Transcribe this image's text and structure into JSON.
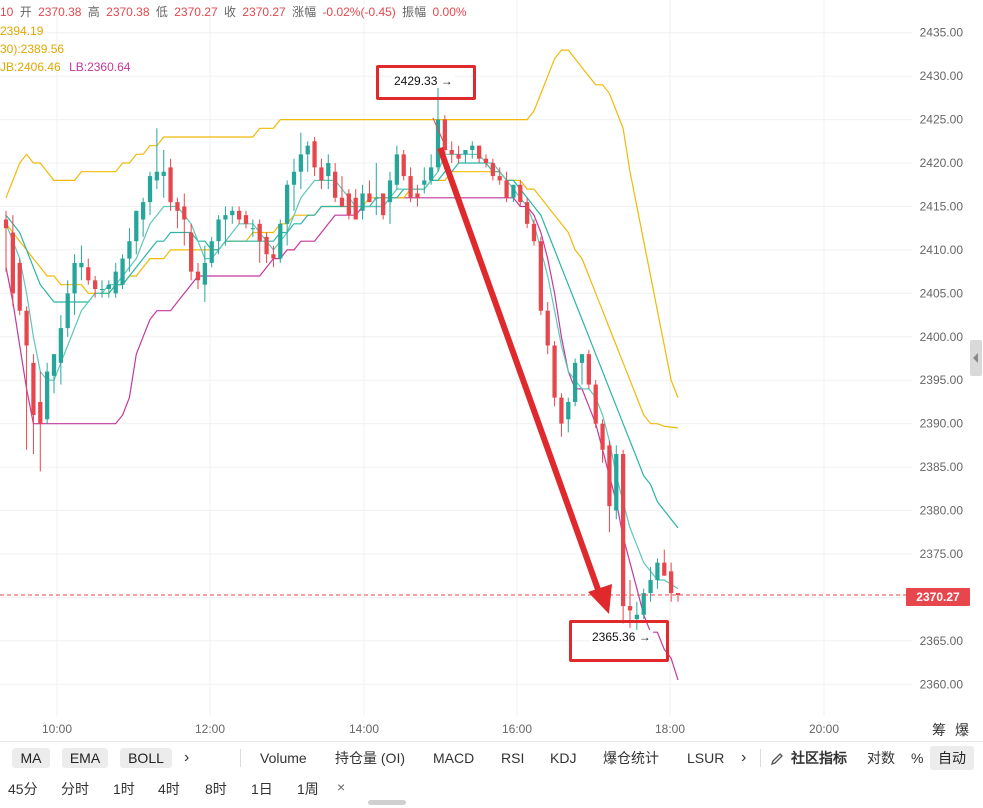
{
  "header": {
    "open_fragment": "10",
    "open_label": "开",
    "open_value": "2370.38",
    "high_label": "高",
    "high_value": "2370.38",
    "low_label": "低",
    "low_value": "2370.27",
    "close_label": "收",
    "close_value": "2370.27",
    "change_label": "涨幅",
    "change_value": "-0.02%(-0.45)",
    "amplitude_label": "振幅",
    "amplitude_value": "0.00%",
    "ma_line_1": "2394.19",
    "ma_line_2": "30):2389.56",
    "boll_ub": "JB:2406.46",
    "boll_lb": "LB:2360.64"
  },
  "annotations": {
    "high_label": "2429.33 →",
    "low_label": "2365.36 →"
  },
  "last_price": "2370.27",
  "colors": {
    "up": "#26a69a",
    "down": "#e8464d",
    "boll_upper": "#f0b90b",
    "boll_lower": "#c2399d",
    "ma_teal": "#2ab5a5",
    "annotation": "#e0292d",
    "grid": "#f0f0f0"
  },
  "price_axis_ticks": [
    "2435.00",
    "2430.00",
    "2425.00",
    "2420.00",
    "2415.00",
    "2410.00",
    "2405.00",
    "2400.00",
    "2395.00",
    "2390.00",
    "2385.00",
    "2380.00",
    "2375.00",
    "2370.00",
    "2365.00",
    "2360.00"
  ],
  "time_axis_ticks": [
    "10:00",
    "12:00",
    "14:00",
    "16:00",
    "18:00",
    "20:00"
  ],
  "corner_labels": [
    "筹",
    "爆"
  ],
  "indicator_bar": {
    "chips": [
      "MA",
      "EMA",
      "BOLL"
    ],
    "arrow_1": "›",
    "tabs": [
      "Volume",
      "持仓量 (OI)",
      "MACD",
      "RSI",
      "KDJ",
      "爆仓统计",
      "LSUR"
    ],
    "arrow_2": "›",
    "community_icon": "pencil-icon",
    "community": "社区指标",
    "ratio": "对数",
    "percent": "%",
    "auto": "自动"
  },
  "timeframes": [
    "45分",
    "分时",
    "1时",
    "4时",
    "8时",
    "1日",
    "1周"
  ],
  "close_symbol": "×",
  "chart_data": {
    "type": "candlestick",
    "title": "",
    "xlabel": "",
    "ylabel": "",
    "ylim": [
      2357.5,
      2437.5
    ],
    "x_ticks": [
      "10:00",
      "12:00",
      "14:00",
      "16:00",
      "18:00",
      "20:00"
    ],
    "candles": [
      {
        "o": 2413.5,
        "h": 2414.5,
        "l": 2407.5,
        "c": 2412.5
      },
      {
        "o": 2412.0,
        "h": 2414.0,
        "l": 2403.5,
        "c": 2405.0
      },
      {
        "o": 2408.5,
        "h": 2409.0,
        "l": 2402.5,
        "c": 2403.0
      },
      {
        "o": 2403.0,
        "h": 2403.5,
        "l": 2387.0,
        "c": 2399.0
      },
      {
        "o": 2397.0,
        "h": 2398.0,
        "l": 2386.5,
        "c": 2391.0
      },
      {
        "o": 2392.5,
        "h": 2396.0,
        "l": 2384.5,
        "c": 2390.0
      },
      {
        "o": 2390.5,
        "h": 2397.0,
        "l": 2390.0,
        "c": 2396.0
      },
      {
        "o": 2395.5,
        "h": 2398.0,
        "l": 2393.5,
        "c": 2398.0
      },
      {
        "o": 2397.0,
        "h": 2402.5,
        "l": 2394.5,
        "c": 2401.0
      },
      {
        "o": 2401.0,
        "h": 2406.5,
        "l": 2400.0,
        "c": 2405.0
      },
      {
        "o": 2405.0,
        "h": 2409.5,
        "l": 2402.5,
        "c": 2408.5
      },
      {
        "o": 2408.0,
        "h": 2410.5,
        "l": 2406.5,
        "c": 2408.5
      },
      {
        "o": 2408.0,
        "h": 2409.0,
        "l": 2406.0,
        "c": 2406.5
      },
      {
        "o": 2406.5,
        "h": 2407.0,
        "l": 2404.5,
        "c": 2405.5
      },
      {
        "o": 2405.5,
        "h": 2406.5,
        "l": 2404.5,
        "c": 2405.5
      },
      {
        "o": 2405.5,
        "h": 2406.5,
        "l": 2404.5,
        "c": 2406.0
      },
      {
        "o": 2405.0,
        "h": 2408.5,
        "l": 2404.5,
        "c": 2407.5
      },
      {
        "o": 2406.0,
        "h": 2409.5,
        "l": 2405.5,
        "c": 2409.0
      },
      {
        "o": 2409.0,
        "h": 2412.5,
        "l": 2407.5,
        "c": 2411.0
      },
      {
        "o": 2411.0,
        "h": 2414.5,
        "l": 2409.5,
        "c": 2414.5
      },
      {
        "o": 2413.5,
        "h": 2416.0,
        "l": 2411.5,
        "c": 2415.5
      },
      {
        "o": 2415.5,
        "h": 2419.0,
        "l": 2414.0,
        "c": 2418.5
      },
      {
        "o": 2418.0,
        "h": 2424.0,
        "l": 2417.0,
        "c": 2419.0
      },
      {
        "o": 2418.5,
        "h": 2421.5,
        "l": 2416.0,
        "c": 2419.0
      },
      {
        "o": 2419.5,
        "h": 2420.5,
        "l": 2414.5,
        "c": 2415.5
      },
      {
        "o": 2415.5,
        "h": 2416.0,
        "l": 2412.5,
        "c": 2414.5
      },
      {
        "o": 2415.0,
        "h": 2416.5,
        "l": 2410.5,
        "c": 2413.5
      },
      {
        "o": 2412.0,
        "h": 2413.0,
        "l": 2406.5,
        "c": 2407.5
      },
      {
        "o": 2407.5,
        "h": 2408.5,
        "l": 2405.5,
        "c": 2406.5
      },
      {
        "o": 2406.0,
        "h": 2410.5,
        "l": 2404.0,
        "c": 2408.5
      },
      {
        "o": 2408.5,
        "h": 2411.5,
        "l": 2408.0,
        "c": 2411.0
      },
      {
        "o": 2411.0,
        "h": 2414.0,
        "l": 2409.5,
        "c": 2413.5
      },
      {
        "o": 2413.5,
        "h": 2415.0,
        "l": 2410.5,
        "c": 2414.0
      },
      {
        "o": 2414.0,
        "h": 2415.0,
        "l": 2413.0,
        "c": 2414.5
      },
      {
        "o": 2414.5,
        "h": 2415.0,
        "l": 2413.0,
        "c": 2413.5
      },
      {
        "o": 2414.0,
        "h": 2414.5,
        "l": 2412.5,
        "c": 2413.0
      },
      {
        "o": 2412.5,
        "h": 2413.5,
        "l": 2411.5,
        "c": 2412.5
      },
      {
        "o": 2413.0,
        "h": 2413.5,
        "l": 2408.5,
        "c": 2411.0
      },
      {
        "o": 2411.5,
        "h": 2412.0,
        "l": 2408.5,
        "c": 2409.5
      },
      {
        "o": 2409.5,
        "h": 2410.5,
        "l": 2408.0,
        "c": 2409.0
      },
      {
        "o": 2409.0,
        "h": 2413.5,
        "l": 2408.5,
        "c": 2413.0
      },
      {
        "o": 2413.0,
        "h": 2418.0,
        "l": 2410.5,
        "c": 2417.5
      },
      {
        "o": 2417.5,
        "h": 2420.5,
        "l": 2414.5,
        "c": 2419.0
      },
      {
        "o": 2419.0,
        "h": 2423.5,
        "l": 2417.0,
        "c": 2421.0
      },
      {
        "o": 2421.0,
        "h": 2422.5,
        "l": 2419.0,
        "c": 2422.0
      },
      {
        "o": 2422.5,
        "h": 2423.0,
        "l": 2418.5,
        "c": 2419.5
      },
      {
        "o": 2419.5,
        "h": 2420.5,
        "l": 2417.0,
        "c": 2418.0
      },
      {
        "o": 2418.5,
        "h": 2421.0,
        "l": 2417.0,
        "c": 2420.0
      },
      {
        "o": 2419.0,
        "h": 2420.0,
        "l": 2415.5,
        "c": 2416.0
      },
      {
        "o": 2416.0,
        "h": 2418.5,
        "l": 2415.5,
        "c": 2415.0
      },
      {
        "o": 2416.5,
        "h": 2417.0,
        "l": 2413.5,
        "c": 2414.0
      },
      {
        "o": 2416.0,
        "h": 2417.0,
        "l": 2413.5,
        "c": 2413.5
      },
      {
        "o": 2414.5,
        "h": 2417.5,
        "l": 2413.5,
        "c": 2416.5
      },
      {
        "o": 2416.5,
        "h": 2418.0,
        "l": 2415.5,
        "c": 2415.5
      },
      {
        "o": 2416.0,
        "h": 2420.0,
        "l": 2414.0,
        "c": 2416.0
      },
      {
        "o": 2416.5,
        "h": 2416.0,
        "l": 2413.5,
        "c": 2414.0
      },
      {
        "o": 2415.5,
        "h": 2419.0,
        "l": 2413.0,
        "c": 2418.0
      },
      {
        "o": 2417.5,
        "h": 2422.0,
        "l": 2417.0,
        "c": 2421.0
      },
      {
        "o": 2421.0,
        "h": 2421.5,
        "l": 2418.0,
        "c": 2418.5
      },
      {
        "o": 2418.5,
        "h": 2419.5,
        "l": 2415.5,
        "c": 2416.0
      },
      {
        "o": 2416.5,
        "h": 2417.5,
        "l": 2415.0,
        "c": 2416.0
      },
      {
        "o": 2417.5,
        "h": 2419.5,
        "l": 2416.5,
        "c": 2418.0
      },
      {
        "o": 2418.0,
        "h": 2421.0,
        "l": 2417.5,
        "c": 2419.5
      },
      {
        "o": 2419.5,
        "h": 2429.3,
        "l": 2419.0,
        "c": 2425.0
      },
      {
        "o": 2425.0,
        "h": 2425.5,
        "l": 2421.0,
        "c": 2421.5
      },
      {
        "o": 2421.5,
        "h": 2422.5,
        "l": 2420.0,
        "c": 2421.0
      },
      {
        "o": 2421.0,
        "h": 2422.0,
        "l": 2420.0,
        "c": 2420.5
      },
      {
        "o": 2421.0,
        "h": 2421.5,
        "l": 2420.0,
        "c": 2421.5
      },
      {
        "o": 2421.5,
        "h": 2422.5,
        "l": 2420.5,
        "c": 2422.0
      },
      {
        "o": 2422.0,
        "h": 2422.0,
        "l": 2420.0,
        "c": 2420.5
      },
      {
        "o": 2420.5,
        "h": 2421.0,
        "l": 2419.5,
        "c": 2420.0
      },
      {
        "o": 2420.0,
        "h": 2420.5,
        "l": 2418.0,
        "c": 2418.5
      },
      {
        "o": 2418.5,
        "h": 2419.5,
        "l": 2417.5,
        "c": 2418.0
      },
      {
        "o": 2418.0,
        "h": 2419.0,
        "l": 2415.5,
        "c": 2416.0
      },
      {
        "o": 2416.0,
        "h": 2417.5,
        "l": 2415.5,
        "c": 2417.5
      },
      {
        "o": 2417.5,
        "h": 2418.0,
        "l": 2415.0,
        "c": 2415.5
      },
      {
        "o": 2415.5,
        "h": 2416.0,
        "l": 2412.5,
        "c": 2413.0
      },
      {
        "o": 2413.0,
        "h": 2413.5,
        "l": 2410.5,
        "c": 2411.0
      },
      {
        "o": 2411.0,
        "h": 2411.5,
        "l": 2402.5,
        "c": 2403.0
      },
      {
        "o": 2403.0,
        "h": 2404.0,
        "l": 2398.0,
        "c": 2399.0
      },
      {
        "o": 2399.0,
        "h": 2399.5,
        "l": 2392.0,
        "c": 2393.0
      },
      {
        "o": 2393.0,
        "h": 2393.5,
        "l": 2388.5,
        "c": 2390.0
      },
      {
        "o": 2390.5,
        "h": 2393.0,
        "l": 2389.0,
        "c": 2392.5
      },
      {
        "o": 2392.5,
        "h": 2397.5,
        "l": 2392.0,
        "c": 2397.0
      },
      {
        "o": 2397.0,
        "h": 2398.0,
        "l": 2394.5,
        "c": 2398.0
      },
      {
        "o": 2398.0,
        "h": 2398.5,
        "l": 2394.0,
        "c": 2394.5
      },
      {
        "o": 2394.5,
        "h": 2395.0,
        "l": 2389.5,
        "c": 2390.0
      },
      {
        "o": 2390.0,
        "h": 2390.5,
        "l": 2385.5,
        "c": 2387.0
      },
      {
        "o": 2387.5,
        "h": 2388.0,
        "l": 2377.5,
        "c": 2380.5
      },
      {
        "o": 2380.0,
        "h": 2387.5,
        "l": 2379.0,
        "c": 2386.5
      },
      {
        "o": 2386.5,
        "h": 2387.0,
        "l": 2367.0,
        "c": 2369.0
      },
      {
        "o": 2369.0,
        "h": 2372.0,
        "l": 2366.5,
        "c": 2368.5
      },
      {
        "o": 2367.5,
        "h": 2369.5,
        "l": 2365.4,
        "c": 2368.0
      },
      {
        "o": 2368.0,
        "h": 2371.0,
        "l": 2367.5,
        "c": 2370.5
      },
      {
        "o": 2370.5,
        "h": 2373.5,
        "l": 2369.5,
        "c": 2372.0
      },
      {
        "o": 2372.0,
        "h": 2374.5,
        "l": 2371.0,
        "c": 2374.0
      },
      {
        "o": 2374.0,
        "h": 2375.5,
        "l": 2372.5,
        "c": 2372.5
      },
      {
        "o": 2373.0,
        "h": 2374.0,
        "l": 2369.5,
        "c": 2370.5
      },
      {
        "o": 2370.5,
        "h": 2370.5,
        "l": 2369.5,
        "c": 2370.27
      }
    ],
    "boll_upper": [
      2416,
      2418,
      2420,
      2421,
      2420,
      2420,
      2419,
      2418,
      2418,
      2418,
      2418,
      2419,
      2419,
      2419,
      2419,
      2419,
      2419,
      2420,
      2420,
      2421,
      2421,
      2422,
      2422,
      2423,
      2423,
      2423,
      2423,
      2423,
      2423,
      2423,
      2423,
      2423,
      2423,
      2423,
      2423,
      2423,
      2423,
      2424,
      2424,
      2424,
      2425,
      2425,
      2425,
      2425,
      2425,
      2425,
      2425,
      2425,
      2425,
      2425,
      2425,
      2425,
      2425,
      2425,
      2425,
      2425,
      2425,
      2425,
      2425,
      2425,
      2425,
      2425,
      2425,
      2425,
      2425,
      2425,
      2425,
      2425,
      2425,
      2425,
      2425,
      2425,
      2425,
      2425,
      2425,
      2425,
      2425,
      2426,
      2428,
      2430,
      2432,
      2433,
      2433,
      2432,
      2431,
      2430,
      2429,
      2429,
      2428,
      2426,
      2424,
      2419,
      2415,
      2411,
      2407,
      2403,
      2399,
      2395,
      2393
    ],
    "boll_lower": [
      2408,
      2404,
      2399,
      2394,
      2390,
      2390,
      2390,
      2390,
      2390,
      2390,
      2390,
      2390,
      2390,
      2390,
      2390,
      2390,
      2390,
      2391,
      2393,
      2398,
      2400,
      2402,
      2403,
      2403,
      2403,
      2404,
      2405,
      2406,
      2407,
      2407,
      2407,
      2407,
      2407,
      2407,
      2407,
      2407,
      2407,
      2407,
      2408,
      2409,
      2409,
      2410,
      2410,
      2411,
      2411,
      2411,
      2412,
      2413,
      2414,
      2414,
      2414,
      2414,
      2415,
      2415,
      2415,
      2415,
      2416,
      2416,
      2416,
      2416,
      2416,
      2416,
      2416,
      2416,
      2416,
      2416,
      2416,
      2416,
      2416,
      2416,
      2416,
      2416,
      2416,
      2416,
      2416,
      2415,
      2415,
      2414,
      2412,
      2409,
      2405,
      2400,
      2396,
      2394,
      2394,
      2392,
      2390,
      2387,
      2384,
      2381,
      2377,
      2374,
      2371,
      2368,
      2366,
      2366,
      2364,
      2363,
      2360.5
    ],
    "ma_long": [
      2413,
      2412,
      2411,
      2410,
      2409,
      2408,
      2407,
      2407,
      2406,
      2406,
      2406,
      2406,
      2405,
      2405,
      2405,
      2405,
      2406,
      2406,
      2407,
      2407,
      2408,
      2409,
      2409,
      2409,
      2410,
      2410,
      2410,
      2410,
      2410,
      2410,
      2410,
      2410,
      2411,
      2411,
      2411,
      2411,
      2412,
      2412,
      2412,
      2412,
      2413,
      2413,
      2414,
      2414,
      2414,
      2414,
      2415,
      2415,
      2415,
      2415,
      2415,
      2415,
      2415,
      2416,
      2416,
      2416,
      2416,
      2416,
      2416,
      2417,
      2417,
      2417,
      2418,
      2418,
      2418,
      2419,
      2419,
      2419,
      2419,
      2419,
      2419,
      2419,
      2419,
      2418,
      2418,
      2418,
      2417,
      2417,
      2416,
      2415,
      2414,
      2413,
      2412,
      2410,
      2409,
      2407,
      2405,
      2403,
      2401,
      2399,
      2397,
      2395,
      2393,
      2391,
      2390,
      2390,
      2389.7,
      2389.6,
      2389.5
    ],
    "ma_mid": [
      2414,
      2413,
      2412,
      2410,
      2408,
      2406,
      2405,
      2404,
      2404,
      2404,
      2404,
      2404,
      2404,
      2405,
      2405,
      2405,
      2406,
      2406,
      2407,
      2408,
      2409,
      2410,
      2411,
      2411,
      2412,
      2412,
      2412,
      2412,
      2411,
      2411,
      2410,
      2410,
      2411,
      2411,
      2411,
      2411,
      2411,
      2411,
      2411,
      2411,
      2412,
      2412,
      2413,
      2413,
      2414,
      2414,
      2415,
      2415,
      2415,
      2415,
      2415,
      2415,
      2415,
      2415,
      2416,
      2416,
      2416,
      2416,
      2417,
      2417,
      2417,
      2417,
      2418,
      2418,
      2419,
      2419,
      2420,
      2420,
      2420,
      2420,
      2420,
      2419,
      2419,
      2418,
      2418,
      2417,
      2416,
      2415,
      2414,
      2412,
      2410,
      2408,
      2406,
      2404,
      2402,
      2400,
      2398,
      2396,
      2394,
      2392,
      2390,
      2388,
      2386,
      2384,
      2383,
      2381,
      2380,
      2379,
      2378
    ],
    "ma_fast": [
      2413,
      2411,
      2409,
      2405,
      2400,
      2396,
      2395,
      2395,
      2397,
      2399,
      2401,
      2403,
      2404,
      2405,
      2405,
      2406,
      2406,
      2407,
      2408,
      2409,
      2411,
      2413,
      2414,
      2415,
      2415,
      2415,
      2414,
      2413,
      2411,
      2409,
      2409,
      2410,
      2411,
      2412,
      2413,
      2413,
      2413,
      2412,
      2411,
      2410,
      2411,
      2412,
      2414,
      2416,
      2417,
      2418,
      2418,
      2418,
      2418,
      2417,
      2416,
      2415,
      2415,
      2415,
      2415,
      2415,
      2416,
      2417,
      2417,
      2417,
      2417,
      2417,
      2418,
      2419,
      2421,
      2421,
      2421,
      2421,
      2421,
      2421,
      2420,
      2420,
      2419,
      2418,
      2417,
      2416,
      2415,
      2413,
      2410,
      2407,
      2403,
      2399,
      2396,
      2395,
      2394,
      2394,
      2393,
      2391,
      2388,
      2384,
      2381,
      2378,
      2376,
      2374,
      2373,
      2372,
      2372,
      2371.5,
      2371
    ]
  }
}
